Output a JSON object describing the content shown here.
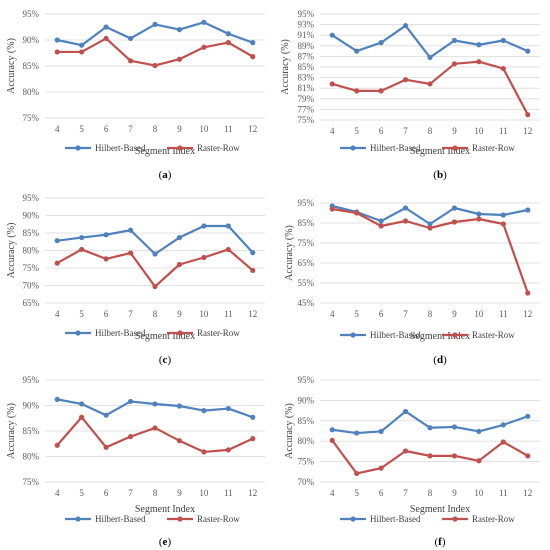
{
  "colors": {
    "hilbert": "#4f81bd",
    "raster": "#c0504d",
    "grid": "#d9d9d9",
    "text": "#595959"
  },
  "chart_data": [
    {
      "panel": "a",
      "type": "line",
      "x": [
        4,
        5,
        6,
        7,
        8,
        9,
        10,
        11,
        12
      ],
      "xlabel": "Segment Index",
      "ylabel": "Accuracy (%)",
      "yticks": [
        "75%",
        "80%",
        "85%",
        "90%",
        "95%"
      ],
      "ylim": [
        75,
        95
      ],
      "grid": true,
      "legend": "bottom",
      "series": [
        {
          "name": "Hilbert-Based",
          "values": [
            90.0,
            89.0,
            92.5,
            90.3,
            93.0,
            92.0,
            93.4,
            91.2,
            89.5
          ]
        },
        {
          "name": "Raster-Row",
          "values": [
            87.7,
            87.7,
            90.3,
            86.0,
            85.1,
            86.3,
            88.6,
            89.5,
            86.8
          ]
        }
      ]
    },
    {
      "panel": "b",
      "type": "line",
      "x": [
        4,
        5,
        6,
        7,
        8,
        9,
        10,
        11,
        12
      ],
      "xlabel": "Segment Index",
      "ylabel": "Accuracy (%)",
      "yticks": [
        "75%",
        "77%",
        "79%",
        "81%",
        "83%",
        "85%",
        "87%",
        "89%",
        "91%",
        "93%",
        "95%"
      ],
      "ylim": [
        75,
        95
      ],
      "grid": true,
      "legend": "bottom",
      "series": [
        {
          "name": "Hilbert-Based",
          "values": [
            91.0,
            88.0,
            89.6,
            92.8,
            86.8,
            90.0,
            89.2,
            90.0,
            88.0
          ]
        },
        {
          "name": "Raster-Row",
          "values": [
            81.8,
            80.5,
            80.5,
            82.6,
            81.8,
            85.6,
            86.0,
            84.7,
            76.0
          ]
        }
      ]
    },
    {
      "panel": "c",
      "type": "line",
      "x": [
        4,
        5,
        6,
        7,
        8,
        9,
        10,
        11,
        12
      ],
      "xlabel": "Segment Index",
      "ylabel": "Accuracy (%)",
      "yticks": [
        "65%",
        "70%",
        "75%",
        "80%",
        "85%",
        "90%",
        "95%"
      ],
      "ylim": [
        65,
        95
      ],
      "grid": true,
      "legend": "bottom",
      "series": [
        {
          "name": "Hilbert-Based",
          "values": [
            82.8,
            83.7,
            84.5,
            85.8,
            79.0,
            83.7,
            87.0,
            87.0,
            79.4
          ]
        },
        {
          "name": "Raster-Row",
          "values": [
            76.4,
            80.3,
            77.6,
            79.3,
            69.7,
            76.0,
            78.0,
            80.3,
            74.3
          ]
        }
      ]
    },
    {
      "panel": "d",
      "type": "line",
      "x": [
        4,
        5,
        6,
        7,
        8,
        9,
        10,
        11,
        12
      ],
      "xlabel": "Segment Index",
      "ylabel": "Accuracy (%)",
      "yticks": [
        "45%",
        "55%",
        "65%",
        "75%",
        "85%",
        "95%"
      ],
      "ylim": [
        45,
        95
      ],
      "grid": true,
      "legend": "bottom",
      "series": [
        {
          "name": "Hilbert-Based",
          "values": [
            93.5,
            90.5,
            86.0,
            92.5,
            84.5,
            92.5,
            89.5,
            89.0,
            91.5
          ]
        },
        {
          "name": "Raster-Row",
          "values": [
            92.0,
            90.0,
            83.5,
            86.0,
            82.5,
            85.5,
            87.0,
            84.5,
            50.0
          ]
        }
      ]
    },
    {
      "panel": "e",
      "type": "line",
      "x": [
        4,
        5,
        6,
        7,
        8,
        9,
        10,
        11,
        12
      ],
      "xlabel": "Segment Index",
      "ylabel": "Accuracy (%)",
      "yticks": [
        "75%",
        "80%",
        "85%",
        "90%",
        "95%"
      ],
      "ylim": [
        75,
        95
      ],
      "grid": true,
      "legend": "bottom",
      "series": [
        {
          "name": "Hilbert-Based",
          "values": [
            91.2,
            90.3,
            88.1,
            90.8,
            90.3,
            89.9,
            89.0,
            89.4,
            87.7
          ]
        },
        {
          "name": "Raster-Row",
          "values": [
            82.2,
            87.7,
            81.8,
            83.9,
            85.6,
            83.1,
            80.9,
            81.3,
            83.5
          ]
        }
      ]
    },
    {
      "panel": "f",
      "type": "line",
      "x": [
        4,
        5,
        6,
        7,
        8,
        9,
        10,
        11,
        12
      ],
      "xlabel": "Segment Index",
      "ylabel": "Accuracy (%)",
      "yticks": [
        "70%",
        "75%",
        "80%",
        "85%",
        "90%",
        "95%"
      ],
      "ylim": [
        70,
        95
      ],
      "grid": true,
      "legend": "bottom",
      "series": [
        {
          "name": "Hilbert-Based",
          "values": [
            82.8,
            82.0,
            82.4,
            87.3,
            83.3,
            83.5,
            82.4,
            84.0,
            86.1
          ]
        },
        {
          "name": "Raster-Row",
          "values": [
            80.2,
            72.1,
            73.4,
            77.6,
            76.4,
            76.4,
            75.2,
            79.8,
            76.4
          ]
        }
      ]
    }
  ]
}
